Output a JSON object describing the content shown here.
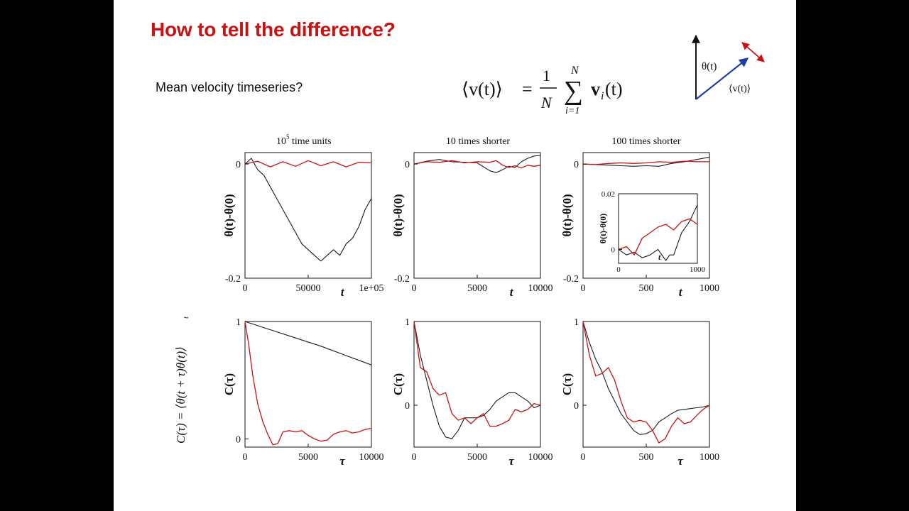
{
  "slide": {
    "title": "How to tell the difference?",
    "subtitle": "Mean velocity timeseries?",
    "equation": {
      "lhs": "⟨v(t)⟩",
      "equals": "=",
      "frac_num": "1",
      "frac_den": "N",
      "sum_top": "N",
      "sum_sym": "∑",
      "sum_bottom": "i=1",
      "term": "v",
      "term_sub": "i",
      "term_arg": "(t)"
    },
    "diagram": {
      "theta_label": "θ(t)",
      "v_label": "⟨v(t)⟩"
    },
    "side_label": "C(τ) = ⟨θ(t + τ)θ(t)⟩",
    "side_label_sub": "t"
  },
  "colors": {
    "title": "#cc1111",
    "series_black": "#1a1a1a",
    "series_red": "#cc1111"
  },
  "chart_data": [
    {
      "type": "line",
      "title": "10⁵ time units",
      "title_base": "10",
      "title_sup": "5",
      "title_rest": " time units",
      "xlabel": "t",
      "ylabel": "θ(t)-θ(0)",
      "xlim": [
        0,
        100000
      ],
      "ylim": [
        -0.2,
        0.02
      ],
      "xticks": [
        "0",
        "50000",
        "1e+05"
      ],
      "yticks": [
        "0",
        "-0.2"
      ],
      "series": [
        {
          "color": "black",
          "x": [
            0,
            5000,
            10000,
            15000,
            20000,
            25000,
            30000,
            35000,
            40000,
            45000,
            50000,
            55000,
            60000,
            65000,
            70000,
            75000,
            80000,
            85000,
            90000,
            95000,
            100000
          ],
          "y": [
            0,
            0.01,
            -0.01,
            -0.02,
            -0.04,
            -0.06,
            -0.08,
            -0.1,
            -0.12,
            -0.14,
            -0.15,
            -0.16,
            -0.17,
            -0.16,
            -0.15,
            -0.16,
            -0.14,
            -0.13,
            -0.11,
            -0.08,
            -0.06
          ]
        },
        {
          "color": "red",
          "x": [
            0,
            10000,
            20000,
            30000,
            40000,
            50000,
            60000,
            70000,
            80000,
            90000,
            100000
          ],
          "y": [
            0,
            0.005,
            -0.005,
            0.004,
            -0.004,
            0.006,
            -0.003,
            0.004,
            -0.005,
            0.003,
            0.002
          ]
        }
      ]
    },
    {
      "type": "line",
      "title": "10 times shorter",
      "xlabel": "t",
      "ylabel": "θ(t)-θ(0)",
      "xlim": [
        0,
        10000
      ],
      "ylim": [
        -0.2,
        0.02
      ],
      "xticks": [
        "0",
        "5000",
        "10000"
      ],
      "yticks": [
        "0",
        "-0.2"
      ],
      "series": [
        {
          "color": "black",
          "x": [
            0,
            1000,
            2000,
            3000,
            4000,
            5000,
            5500,
            6000,
            6500,
            7000,
            7500,
            8000,
            8500,
            9000,
            9500,
            10000
          ],
          "y": [
            0,
            0.005,
            0.008,
            0.004,
            0.003,
            0.002,
            -0.005,
            -0.012,
            -0.015,
            -0.01,
            -0.004,
            -0.006,
            0.004,
            0.01,
            0.014,
            0.015
          ]
        },
        {
          "color": "red",
          "x": [
            0,
            1000,
            2000,
            3000,
            4000,
            5000,
            6000,
            6500,
            7000,
            7500,
            8000,
            8500,
            9000,
            9500,
            10000
          ],
          "y": [
            0,
            0.004,
            0.003,
            0.006,
            0.002,
            0.004,
            0.003,
            0.006,
            -0.002,
            -0.006,
            -0.003,
            -0.007,
            -0.002,
            -0.004,
            -0.002
          ]
        }
      ]
    },
    {
      "type": "line",
      "title": "100 times shorter",
      "xlabel": "t",
      "ylabel": "θ(t)-θ(0)",
      "xlim": [
        0,
        1000
      ],
      "ylim": [
        -0.2,
        0.02
      ],
      "xticks": [
        "0",
        "500",
        "1000"
      ],
      "yticks": [
        "0",
        "-0.2"
      ],
      "series": [
        {
          "color": "black",
          "x": [
            0,
            100,
            200,
            300,
            400,
            500,
            600,
            700,
            800,
            900,
            1000
          ],
          "y": [
            0,
            -0.001,
            -0.002,
            -0.003,
            -0.004,
            -0.003,
            -0.004,
            0.001,
            0.004,
            0.008,
            0.012
          ]
        },
        {
          "color": "red",
          "x": [
            0,
            100,
            200,
            300,
            400,
            500,
            600,
            700,
            800,
            900,
            1000
          ],
          "y": [
            0,
            -0.001,
            0.001,
            0.002,
            0.001,
            0.002,
            0.004,
            0.003,
            0.005,
            0.004,
            0.004
          ]
        }
      ],
      "inset": {
        "ylabel": "θ(t)-θ(0)",
        "xlabel": "t",
        "xlim": [
          0,
          1000
        ],
        "ylim": [
          -0.005,
          0.02
        ],
        "xticks": [
          "0",
          "1000"
        ],
        "yticks": [
          "0.02",
          "0"
        ],
        "series": [
          {
            "color": "black",
            "x": [
              0,
              100,
              200,
              300,
              400,
              500,
              600,
              650,
              700,
              800,
              900,
              1000
            ],
            "y": [
              0,
              -0.002,
              -0.001,
              -0.003,
              -0.002,
              0.0,
              -0.004,
              -0.002,
              -0.002,
              0.006,
              0.01,
              0.016
            ]
          },
          {
            "color": "red",
            "x": [
              0,
              100,
              200,
              300,
              400,
              500,
              600,
              700,
              800,
              900,
              1000
            ],
            "y": [
              0,
              0.001,
              -0.002,
              0.004,
              0.006,
              0.008,
              0.009,
              0.007,
              0.01,
              0.011,
              0.009
            ]
          }
        ]
      }
    },
    {
      "type": "line",
      "title": "",
      "xlabel": "τ",
      "ylabel": "C(τ)",
      "xlim": [
        0,
        10000
      ],
      "ylim": [
        -0.07,
        1
      ],
      "xticks": [
        "0",
        "5000",
        "10000"
      ],
      "yticks": [
        "1",
        "0"
      ],
      "series": [
        {
          "color": "black",
          "x": [
            0,
            2000,
            4000,
            6000,
            8000,
            10000
          ],
          "y": [
            1,
            0.93,
            0.86,
            0.79,
            0.71,
            0.63
          ]
        },
        {
          "color": "red",
          "x": [
            0,
            300,
            600,
            1000,
            1400,
            1800,
            2200,
            2600,
            3000,
            3500,
            4000,
            4500,
            5000,
            5500,
            6000,
            6500,
            7000,
            7500,
            8000,
            8500,
            9000,
            9500,
            10000
          ],
          "y": [
            1,
            0.8,
            0.55,
            0.3,
            0.15,
            0.04,
            -0.05,
            -0.04,
            0.06,
            0.07,
            0.06,
            0.07,
            0.03,
            0.0,
            -0.02,
            -0.01,
            0.04,
            0.06,
            0.07,
            0.05,
            0.06,
            0.08,
            0.09
          ]
        }
      ]
    },
    {
      "type": "line",
      "title": "",
      "xlabel": "τ",
      "ylabel": "C(τ)",
      "xlim": [
        0,
        10000
      ],
      "ylim": [
        -0.5,
        1
      ],
      "xticks": [
        "0",
        "5000",
        "10000"
      ],
      "yticks": [
        "1",
        "0"
      ],
      "series": [
        {
          "color": "black",
          "x": [
            0,
            500,
            1000,
            1500,
            2000,
            2500,
            3000,
            3500,
            4000,
            5000,
            5500,
            6000,
            6500,
            7000,
            7500,
            8000,
            8500,
            9000,
            9500,
            10000
          ],
          "y": [
            1,
            0.6,
            0.3,
            0.0,
            -0.25,
            -0.38,
            -0.4,
            -0.3,
            -0.15,
            -0.15,
            -0.12,
            -0.05,
            0.05,
            0.1,
            0.15,
            0.15,
            0.1,
            0.05,
            -0.03,
            0.0
          ]
        },
        {
          "color": "red",
          "x": [
            0,
            500,
            1000,
            1500,
            2000,
            2500,
            3000,
            3500,
            4000,
            4500,
            5000,
            5500,
            6000,
            6500,
            7000,
            7500,
            8000,
            8500,
            9000,
            9500,
            10000
          ],
          "y": [
            1,
            0.45,
            0.4,
            0.2,
            0.12,
            0.15,
            -0.1,
            -0.18,
            -0.15,
            -0.22,
            -0.15,
            -0.1,
            -0.25,
            -0.25,
            -0.22,
            -0.18,
            -0.05,
            -0.08,
            -0.05,
            0.02,
            0.0
          ]
        }
      ]
    },
    {
      "type": "line",
      "title": "",
      "xlabel": "τ",
      "ylabel": "C(τ)",
      "xlim": [
        0,
        1000
      ],
      "ylim": [
        -0.5,
        1
      ],
      "xticks": [
        "0",
        "500",
        "1000"
      ],
      "yticks": [
        "1",
        "0"
      ],
      "series": [
        {
          "color": "black",
          "x": [
            0,
            50,
            100,
            150,
            200,
            250,
            300,
            350,
            400,
            450,
            500,
            550,
            600,
            650,
            700,
            750,
            800,
            850,
            900,
            950,
            1000
          ],
          "y": [
            1,
            0.75,
            0.55,
            0.4,
            0.2,
            0.05,
            -0.1,
            -0.2,
            -0.3,
            -0.35,
            -0.34,
            -0.3,
            -0.2,
            -0.15,
            -0.1,
            -0.06,
            -0.05,
            -0.04,
            -0.03,
            -0.02,
            0.0
          ]
        },
        {
          "color": "red",
          "x": [
            0,
            50,
            100,
            150,
            200,
            250,
            300,
            350,
            400,
            450,
            500,
            550,
            600,
            650,
            700,
            750,
            800,
            850,
            900,
            950,
            1000
          ],
          "y": [
            1,
            0.6,
            0.35,
            0.38,
            0.45,
            0.3,
            0.05,
            -0.15,
            -0.2,
            -0.18,
            -0.2,
            -0.3,
            -0.45,
            -0.4,
            -0.25,
            -0.15,
            -0.22,
            -0.2,
            -0.12,
            -0.05,
            0.0
          ]
        }
      ]
    }
  ]
}
